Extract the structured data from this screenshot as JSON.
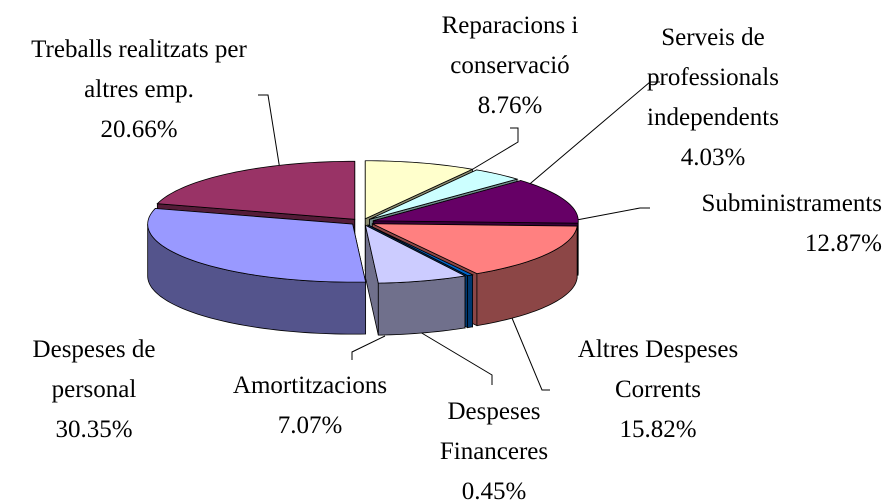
{
  "chart_data": {
    "type": "pie3d",
    "categories": [
      "Reparacions i conservació",
      "Serveis de professionals independents",
      "Subministraments",
      "Altres Despeses Corrents",
      "Despeses Financeres",
      "Amortitzacions",
      "Despeses de personal",
      "Treballs realitzats per altres emp."
    ],
    "values": [
      8.76,
      4.03,
      12.87,
      15.82,
      0.45,
      7.07,
      30.35,
      20.66
    ],
    "value_labels": [
      "8.76%",
      "4.03%",
      "12.87%",
      "15.82%",
      "0.45%",
      "7.07%",
      "30.35%",
      "20.66%"
    ],
    "colors": [
      "#ffffcc",
      "#ccffff",
      "#660066",
      "#ff8080",
      "#0066cc",
      "#ccccff",
      "#9999ff",
      "#993366"
    ]
  }
}
